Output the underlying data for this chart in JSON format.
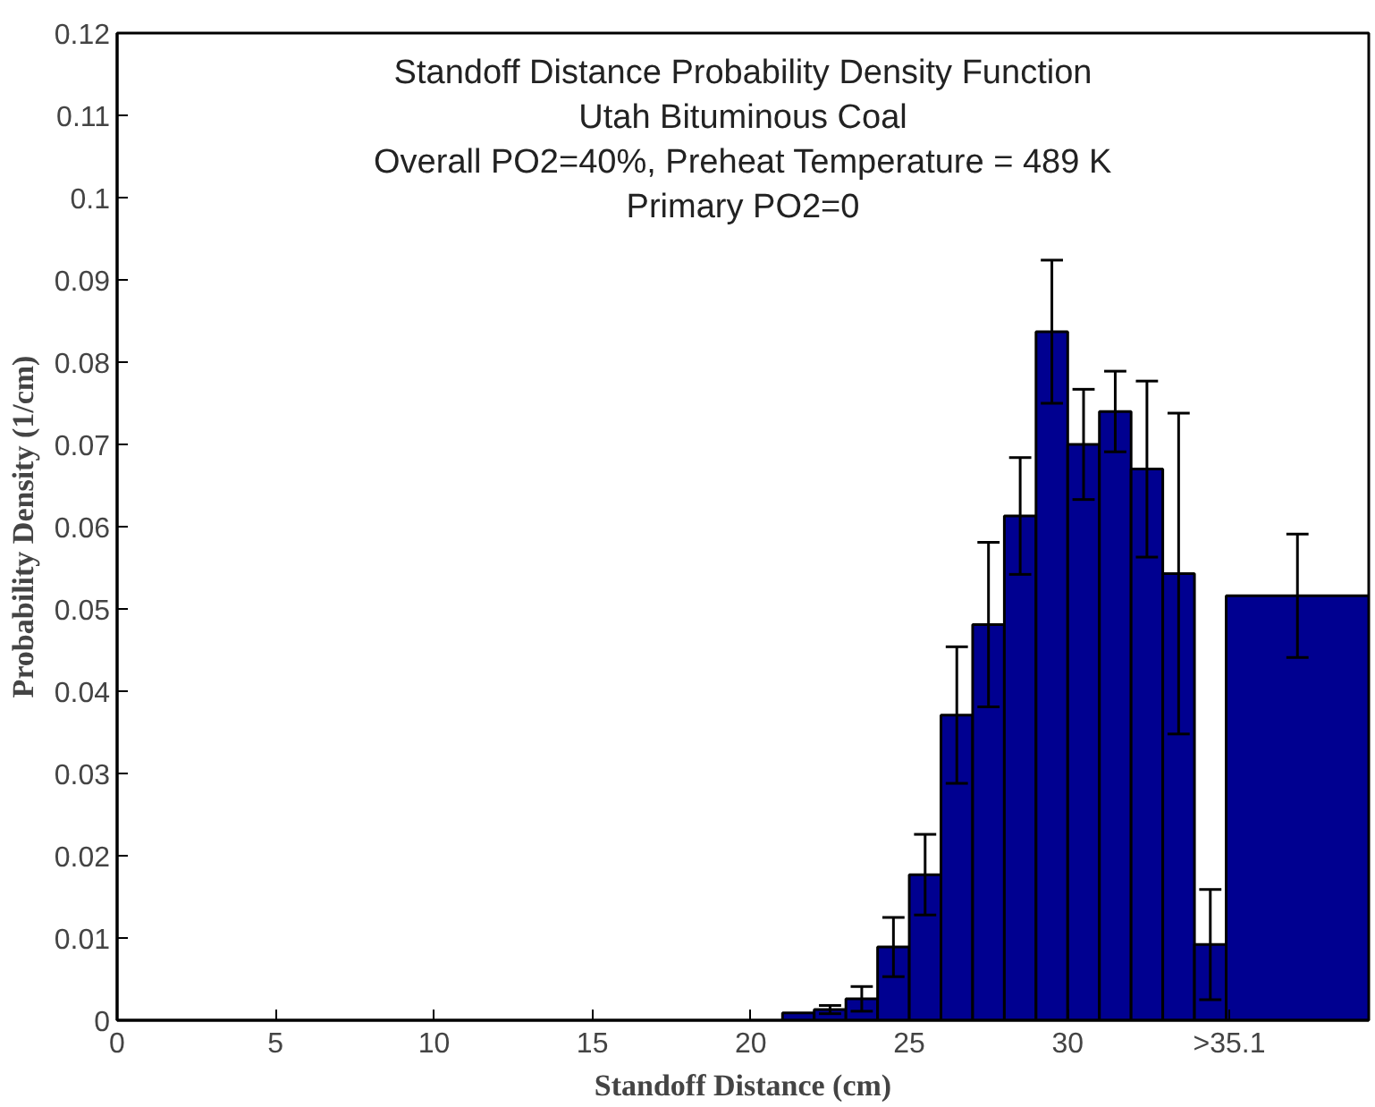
{
  "chart_data": {
    "type": "histogram",
    "title": "Standoff Distance Probability Density Function",
    "annotations": [
      "Utah Bituminous Coal",
      "Overall PO2=40%, Preheat Temperature = 489 K",
      "Primary PO2=0"
    ],
    "xlabel": "Standoff Distance (cm)",
    "ylabel": "Probability Density (1/cm)",
    "bins": [
      21,
      22,
      23,
      24,
      25,
      26,
      27,
      28,
      29,
      30,
      31,
      32,
      33,
      34,
      35,
      39.5
    ],
    "values": [
      0.0009,
      0.0013,
      0.0026,
      0.0089,
      0.0177,
      0.0371,
      0.0481,
      0.0613,
      0.0837,
      0.07,
      0.074,
      0.067,
      0.0543,
      0.0092,
      0.0516
    ],
    "errors": [
      null,
      0.0005,
      0.0015,
      0.0036,
      0.0049,
      0.0083,
      0.01,
      0.0071,
      0.0087,
      0.0067,
      0.0049,
      0.0107,
      0.0195,
      0.0067,
      0.0075
    ],
    "color": "#000090",
    "xlim": [
      0,
      39.5
    ],
    "ylim": [
      0,
      0.12
    ],
    "xticks": [
      0,
      5,
      10,
      15,
      20,
      25,
      30,
      {
        "value": 35.1,
        "label": ">35.1"
      }
    ],
    "yticks": [
      0,
      0.01,
      0.02,
      0.03,
      0.04,
      0.05,
      0.06,
      0.07,
      0.08,
      0.09,
      0.1,
      0.11,
      0.12
    ],
    "grid": false
  }
}
